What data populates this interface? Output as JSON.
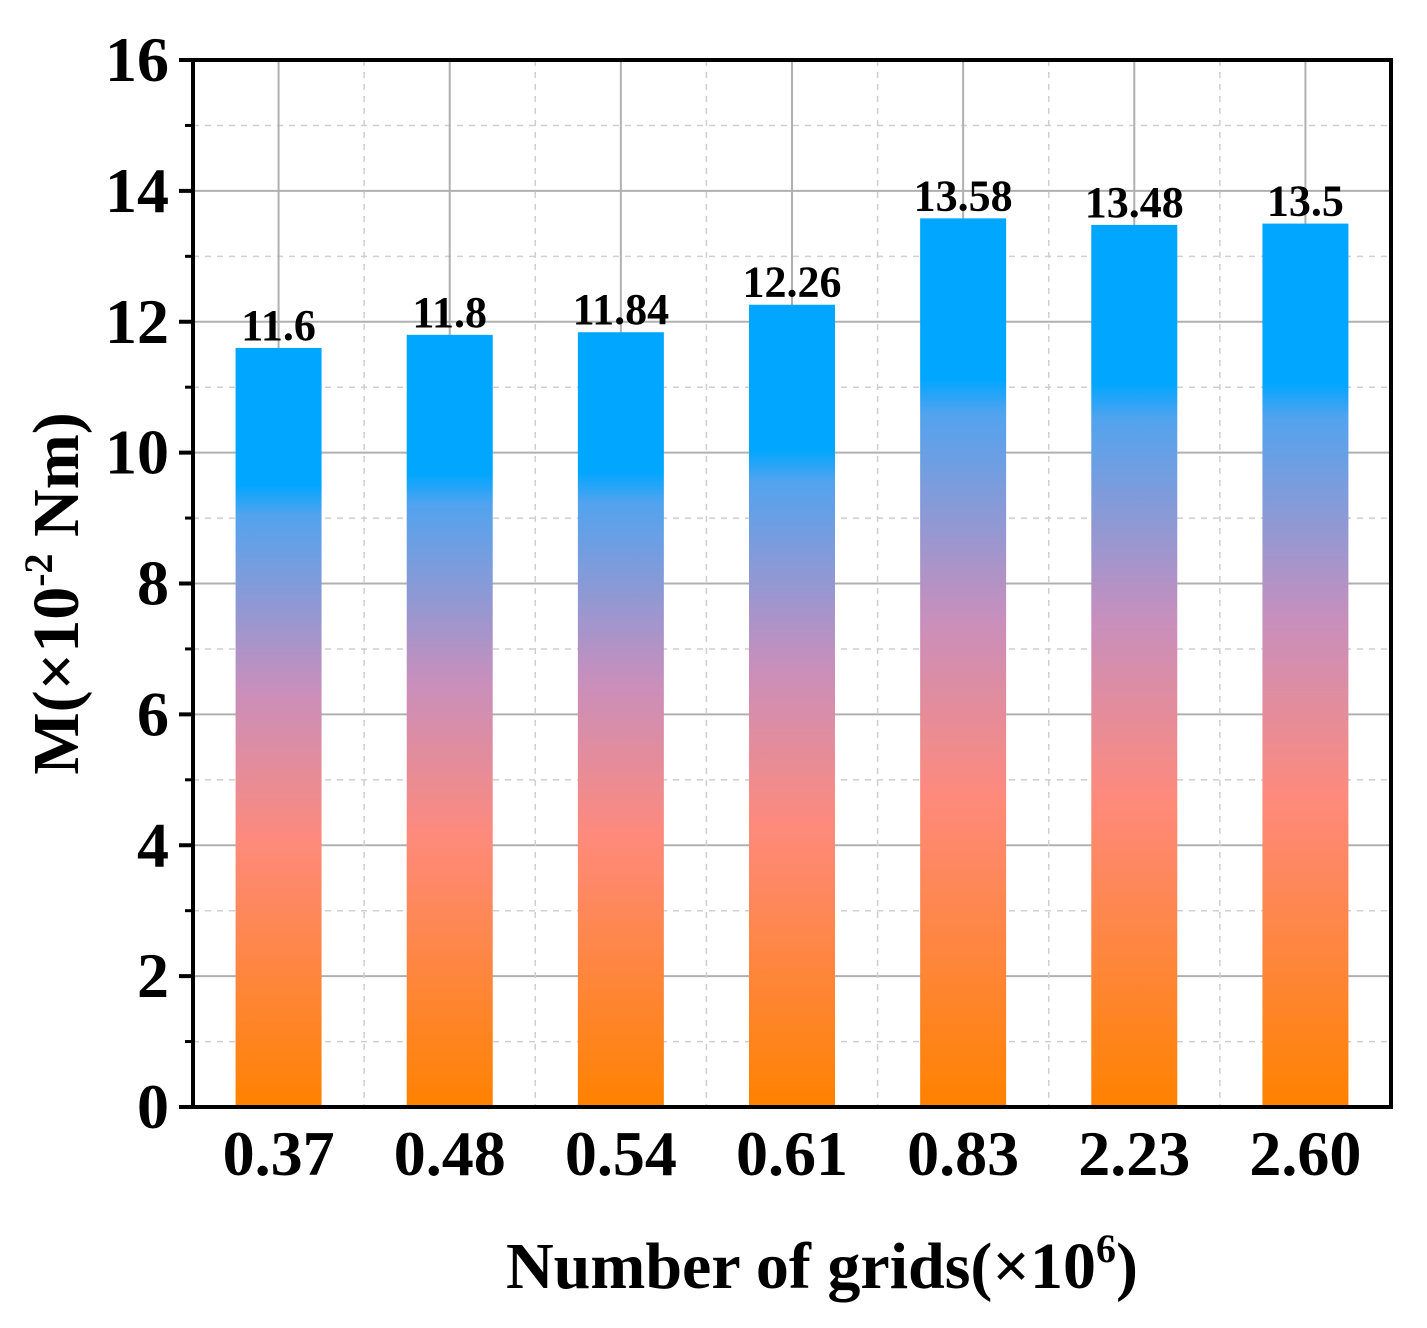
{
  "chart_data": {
    "type": "bar",
    "categories": [
      "0.37",
      "0.48",
      "0.54",
      "0.61",
      "0.83",
      "2.23",
      "2.60"
    ],
    "values": [
      11.6,
      11.8,
      11.84,
      12.26,
      13.58,
      13.48,
      13.5
    ],
    "value_labels": [
      "11.6",
      "11.8",
      "11.84",
      "12.26",
      "13.58",
      "13.48",
      "13.5"
    ],
    "yticks": [
      "0",
      "2",
      "4",
      "6",
      "8",
      "10",
      "12",
      "14",
      "16"
    ],
    "ylim": [
      0,
      16
    ],
    "grid": true,
    "xlabel": {
      "main": "Number of grids(×10",
      "sup": "6",
      "end": ")"
    },
    "ylabel": {
      "main": "M(×10",
      "sup": "-2",
      "end": " Nm)"
    },
    "colors": {
      "top": "#00a6ff",
      "bottom": "#ff8200",
      "mid": "#c88fbc",
      "axis": "#000000",
      "grid": "#b0b0b0"
    }
  }
}
